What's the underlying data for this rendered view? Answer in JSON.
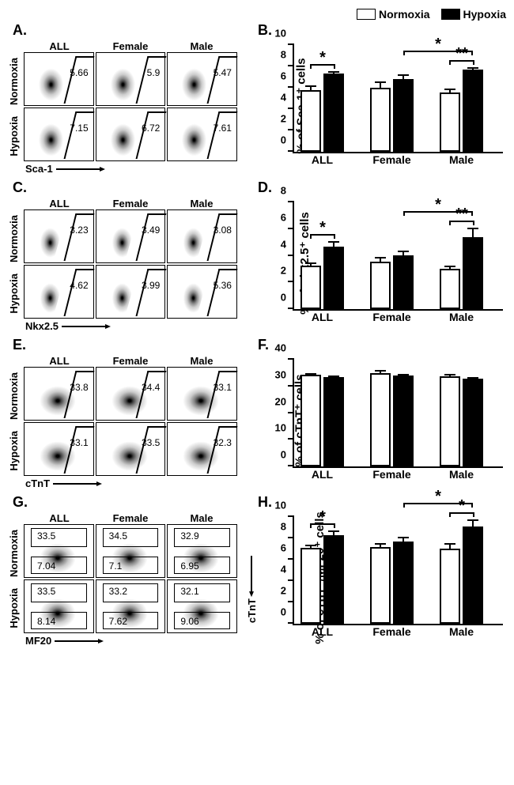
{
  "legend": {
    "normoxia": "Normoxia",
    "hypoxia": "Hypoxia"
  },
  "colors": {
    "normoxia_fill": "#ffffff",
    "hypoxia_fill": "#000000",
    "axis": "#000000",
    "background": "#ffffff"
  },
  "group_labels": [
    "ALL",
    "Female",
    "Male"
  ],
  "row_labels": [
    "Normoxia",
    "Hypoxia"
  ],
  "significance_marks": {
    "single": "*",
    "double": "**"
  },
  "panelA": {
    "label": "A.",
    "xlabel": "Sca-1",
    "gate_style": "line",
    "blob_type": "type-a",
    "values": [
      [
        5.66,
        5.9,
        5.47
      ],
      [
        7.15,
        6.72,
        7.61
      ]
    ]
  },
  "panelB": {
    "label": "B.",
    "ylabel": "% of Sca-1⁺ cells",
    "ylim": [
      0,
      10
    ],
    "ytick_step": 2,
    "groups": [
      {
        "name": "ALL",
        "normoxia": {
          "mean": 5.7,
          "err": 0.5
        },
        "hypoxia": {
          "mean": 7.2,
          "err": 0.3
        },
        "sig_within": "*"
      },
      {
        "name": "Female",
        "normoxia": {
          "mean": 5.9,
          "err": 0.7
        },
        "hypoxia": {
          "mean": 6.7,
          "err": 0.5
        }
      },
      {
        "name": "Male",
        "normoxia": {
          "mean": 5.5,
          "err": 0.4
        },
        "hypoxia": {
          "mean": 7.6,
          "err": 0.3
        },
        "sig_within": "**"
      }
    ],
    "sig_between": {
      "from": "Female.hypoxia",
      "to": "Male.hypoxia",
      "text": "*"
    }
  },
  "panelC": {
    "label": "C.",
    "xlabel": "Nkx2.5",
    "gate_style": "line",
    "blob_type": "type-c",
    "values": [
      [
        3.23,
        3.49,
        3.08
      ],
      [
        4.62,
        3.99,
        5.36
      ]
    ]
  },
  "panelD": {
    "label": "D.",
    "ylabel": "% of Nkx2.5⁺ cells",
    "ylim": [
      0,
      8
    ],
    "ytick_step": 2,
    "groups": [
      {
        "name": "ALL",
        "normoxia": {
          "mean": 3.2,
          "err": 0.3
        },
        "hypoxia": {
          "mean": 4.6,
          "err": 0.5
        },
        "sig_within": "*"
      },
      {
        "name": "Female",
        "normoxia": {
          "mean": 3.5,
          "err": 0.4
        },
        "hypoxia": {
          "mean": 4.0,
          "err": 0.4
        }
      },
      {
        "name": "Male",
        "normoxia": {
          "mean": 3.0,
          "err": 0.3
        },
        "hypoxia": {
          "mean": 5.3,
          "err": 0.8
        },
        "sig_within": "**"
      }
    ],
    "sig_between": {
      "from": "Female.hypoxia",
      "to": "Male.hypoxia",
      "text": "*"
    }
  },
  "panelE": {
    "label": "E.",
    "xlabel": "cTnT",
    "gate_style": "line",
    "blob_type": "type-e",
    "values": [
      [
        33.8,
        34.4,
        33.1
      ],
      [
        33.1,
        33.5,
        32.3
      ]
    ]
  },
  "panelF": {
    "label": "F.",
    "ylabel": "% of cTnT⁺ cells",
    "ylim": [
      0,
      40
    ],
    "ytick_step": 10,
    "groups": [
      {
        "name": "ALL",
        "normoxia": {
          "mean": 33.8,
          "err": 1.0
        },
        "hypoxia": {
          "mean": 33.0,
          "err": 0.8
        }
      },
      {
        "name": "Female",
        "normoxia": {
          "mean": 34.4,
          "err": 1.6
        },
        "hypoxia": {
          "mean": 33.6,
          "err": 0.8
        }
      },
      {
        "name": "Male",
        "normoxia": {
          "mean": 33.2,
          "err": 1.2
        },
        "hypoxia": {
          "mean": 32.5,
          "err": 0.9
        }
      }
    ]
  },
  "panelG": {
    "label": "G.",
    "xlabel": "MF20",
    "y2label": "cTnT",
    "gate_style": "boxes",
    "blob_type": "type-e",
    "values_upper": [
      [
        33.5,
        34.5,
        32.9
      ],
      [
        33.5,
        33.2,
        32.1
      ]
    ],
    "values_lower": [
      [
        7.04,
        7.1,
        6.95
      ],
      [
        8.14,
        7.62,
        9.06
      ]
    ]
  },
  "panelH": {
    "label": "H.",
    "ylabel": "% of cTnT⁻/MF20⁺ cells",
    "ylim": [
      0,
      10
    ],
    "ytick_step": 2,
    "groups": [
      {
        "name": "ALL",
        "normoxia": {
          "mean": 7.0,
          "err": 0.4
        },
        "hypoxia": {
          "mean": 8.2,
          "err": 0.5
        },
        "sig_within": "*"
      },
      {
        "name": "Female",
        "normoxia": {
          "mean": 7.1,
          "err": 0.4
        },
        "hypoxia": {
          "mean": 7.6,
          "err": 0.5
        }
      },
      {
        "name": "Male",
        "normoxia": {
          "mean": 6.9,
          "err": 0.6
        },
        "hypoxia": {
          "mean": 9.0,
          "err": 0.7
        },
        "sig_within": "*"
      }
    ],
    "sig_between": {
      "from": "Female.hypoxia",
      "to": "Male.hypoxia",
      "text": "*"
    }
  }
}
